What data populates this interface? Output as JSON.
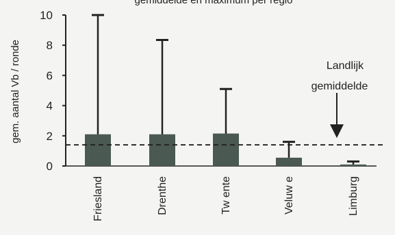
{
  "chart_data": {
    "type": "bar",
    "title": "gemiddelde en maximum per regio",
    "xlabel": "",
    "ylabel": "gem. aantal Vb / ronde",
    "ylim": [
      0,
      10
    ],
    "yticks": [
      0,
      2,
      4,
      6,
      8,
      10
    ],
    "categories": [
      "Friesland",
      "Drenthe",
      "Tw ente",
      "Veluw e",
      "Limburg"
    ],
    "series": [
      {
        "values": [
          2.1,
          2.1,
          2.15,
          0.55,
          0.1
        ],
        "maximum": [
          10.0,
          8.35,
          5.1,
          1.6,
          0.3
        ]
      }
    ],
    "reference_line": {
      "value": 1.4,
      "style": "dashed"
    },
    "annotation": {
      "lines": [
        "Landlijk",
        "gemiddelde"
      ]
    },
    "grid": false,
    "legend": "none",
    "colors": {
      "bar": "#4a5a52",
      "line": "#222222",
      "background": "#f4f4f2"
    }
  }
}
